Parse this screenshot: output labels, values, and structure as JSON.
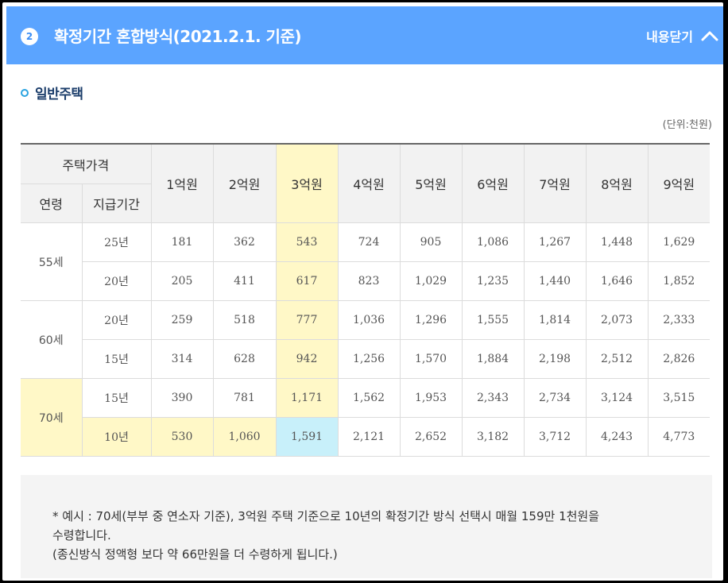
{
  "header": {
    "number": "2",
    "title": "확정기간 혼합방식(2021.2.1. 기준)",
    "toggle_label": "내용닫기",
    "toggle_icon": "chevron-up-icon"
  },
  "section": {
    "title": "일반주택"
  },
  "unit_text": "(단위:천원)",
  "colors": {
    "header_bg": "#5ba4ff",
    "highlight_yellow": "#fff8c7",
    "highlight_blue": "#c8f0fa"
  },
  "table": {
    "price_header": "주택가격",
    "age_header": "연령",
    "period_header": "지급기간",
    "prices": [
      "1억원",
      "2억원",
      "3억원",
      "4억원",
      "5억원",
      "6억원",
      "7억원",
      "8억원",
      "9억원"
    ],
    "groups": [
      {
        "age": "55세",
        "rows": [
          {
            "period": "25년",
            "values": [
              "181",
              "362",
              "543",
              "724",
              "905",
              "1,086",
              "1,267",
              "1,448",
              "1,629"
            ]
          },
          {
            "period": "20년",
            "values": [
              "205",
              "411",
              "617",
              "823",
              "1,029",
              "1,235",
              "1,440",
              "1,646",
              "1,852"
            ]
          }
        ]
      },
      {
        "age": "60세",
        "rows": [
          {
            "period": "20년",
            "values": [
              "259",
              "518",
              "777",
              "1,036",
              "1,296",
              "1,555",
              "1,814",
              "2,073",
              "2,333"
            ]
          },
          {
            "period": "15년",
            "values": [
              "314",
              "628",
              "942",
              "1,256",
              "1,570",
              "1,884",
              "2,198",
              "2,512",
              "2,826"
            ]
          }
        ]
      },
      {
        "age": "70세",
        "rows": [
          {
            "period": "15년",
            "values": [
              "390",
              "781",
              "1,171",
              "1,562",
              "1,953",
              "2,343",
              "2,734",
              "3,124",
              "3,515"
            ]
          },
          {
            "period": "10년",
            "values": [
              "530",
              "1,060",
              "1,591",
              "2,121",
              "2,652",
              "3,182",
              "3,712",
              "4,243",
              "4,773"
            ]
          }
        ]
      }
    ]
  },
  "note": {
    "line1": "* 예시 : 70세(부부 중 연소자 기준), 3억원 주택 기준으로 10년의 확정기간 방식 선택시 매월 159만 1천원을",
    "line2": "수령합니다.",
    "line3": "(종신방식 정액형 보다 약 66만원을 더 수령하게 됩니다.)"
  }
}
